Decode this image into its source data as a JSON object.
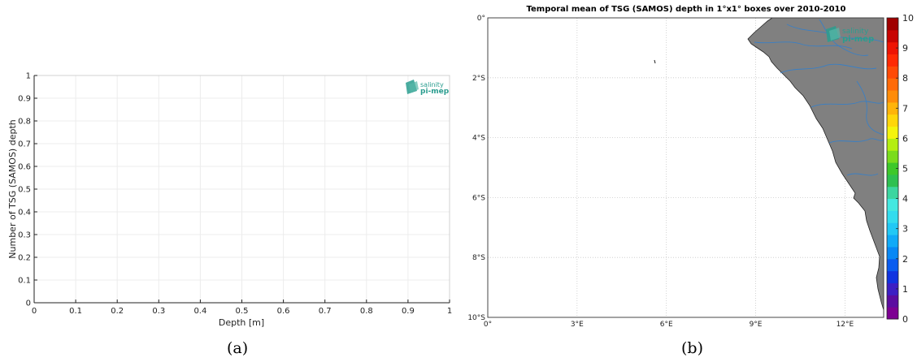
{
  "chart_data": [
    {
      "type": "line",
      "panel_caption": "(a)",
      "title": "",
      "xlabel": "Depth [m]",
      "ylabel": "Number of TSG (SAMOS) depth",
      "xlim": [
        0,
        1
      ],
      "ylim": [
        0,
        1
      ],
      "x_ticks": [
        "0",
        "0.1",
        "0.2",
        "0.3",
        "0.4",
        "0.5",
        "0.6",
        "0.7",
        "0.8",
        "0.9",
        "1"
      ],
      "y_ticks": [
        "0",
        "0.1",
        "0.2",
        "0.3",
        "0.4",
        "0.5",
        "0.6",
        "0.7",
        "0.8",
        "0.9",
        "1"
      ],
      "grid": true,
      "series": [],
      "logo": {
        "line1": "salinity",
        "line2": "pi-mep",
        "color": "#2a9d8f"
      }
    },
    {
      "type": "heatmap",
      "panel_caption": "(b)",
      "title": "Temporal mean of TSG (SAMOS) depth in 1°x1° boxes over 2010-2010",
      "lon_range_deg_e": [
        0,
        13.3
      ],
      "lat_range_deg_s": [
        0,
        10
      ],
      "x_ticks": [
        {
          "value": 0,
          "label": "0°"
        },
        {
          "value": 3,
          "label": "3°E"
        },
        {
          "value": 6,
          "label": "6°E"
        },
        {
          "value": 9,
          "label": "9°E"
        },
        {
          "value": 12,
          "label": "12°E"
        }
      ],
      "y_ticks": [
        {
          "value": 0,
          "label": "0°"
        },
        {
          "value": 2,
          "label": "2°S"
        },
        {
          "value": 4,
          "label": "4°S"
        },
        {
          "value": 6,
          "label": "6°S"
        },
        {
          "value": 8,
          "label": "8°S"
        },
        {
          "value": 10,
          "label": "10°S"
        }
      ],
      "grid": true,
      "colorbar": {
        "min": 0,
        "max": 10,
        "tick_labels": [
          "0",
          "1",
          "2",
          "3",
          "4",
          "5",
          "6",
          "7",
          "8",
          "9",
          "10"
        ],
        "colors": [
          "#7d0092",
          "#5b0ca0",
          "#3c1fc4",
          "#1033e0",
          "#0a5cf0",
          "#0888f5",
          "#10aaf8",
          "#22c8f5",
          "#33dcee",
          "#44e8e0",
          "#3cd6a0",
          "#2ec050",
          "#3ec82a",
          "#7adc1c",
          "#b4ee10",
          "#f4f40c",
          "#ffd60a",
          "#ffb40a",
          "#ff8c08",
          "#ff6a08",
          "#ff4a06",
          "#ff2a04",
          "#ee1404",
          "#c80402",
          "#a00000"
        ]
      },
      "land_color": "#808080",
      "river_color": "#3a7fc4",
      "data_cells": [],
      "logo": {
        "line1": "salinity",
        "line2": "pi-mep",
        "color": "#2a9d8f"
      }
    }
  ]
}
